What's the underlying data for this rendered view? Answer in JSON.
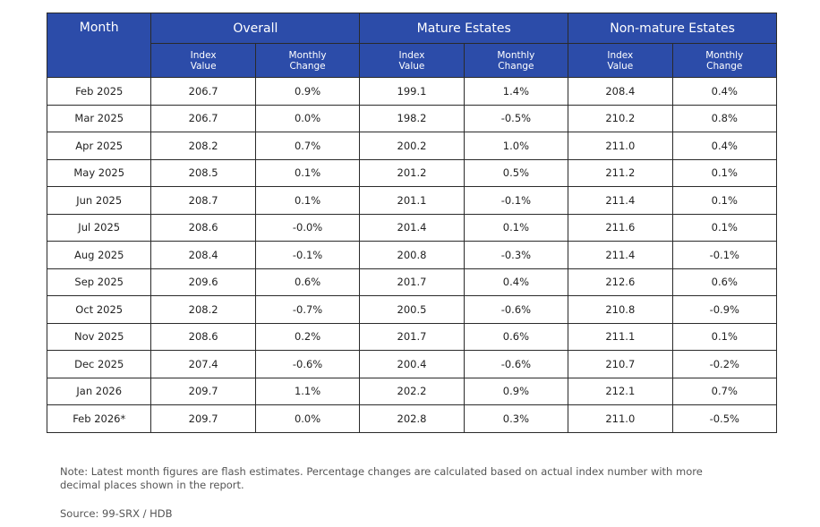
{
  "table": {
    "month_header": "Month",
    "groups": [
      "Overall",
      "Mature Estates",
      "Non-mature Estates"
    ],
    "sub_headers": [
      "Index Value",
      "Monthly Change",
      "Index Value",
      "Monthly Change",
      "Index Value",
      "Monthly Change"
    ],
    "rows": [
      [
        "Feb 2025",
        "206.7",
        "0.9%",
        "199.1",
        "1.4%",
        "208.4",
        "0.4%"
      ],
      [
        "Mar 2025",
        "206.7",
        "0.0%",
        "198.2",
        "-0.5%",
        "210.2",
        "0.8%"
      ],
      [
        "Apr 2025",
        "208.2",
        "0.7%",
        "200.2",
        "1.0%",
        "211.0",
        "0.4%"
      ],
      [
        "May 2025",
        "208.5",
        "0.1%",
        "201.2",
        "0.5%",
        "211.2",
        "0.1%"
      ],
      [
        "Jun 2025",
        "208.7",
        "0.1%",
        "201.1",
        "-0.1%",
        "211.4",
        "0.1%"
      ],
      [
        "Jul 2025",
        "208.6",
        "-0.0%",
        "201.4",
        "0.1%",
        "211.6",
        "0.1%"
      ],
      [
        "Aug 2025",
        "208.4",
        "-0.1%",
        "200.8",
        "-0.3%",
        "211.4",
        "-0.1%"
      ],
      [
        "Sep 2025",
        "209.6",
        "0.6%",
        "201.7",
        "0.4%",
        "212.6",
        "0.6%"
      ],
      [
        "Oct 2025",
        "208.2",
        "-0.7%",
        "200.5",
        "-0.6%",
        "210.8",
        "-0.9%"
      ],
      [
        "Nov 2025",
        "208.6",
        "0.2%",
        "201.7",
        "0.6%",
        "211.1",
        "0.1%"
      ],
      [
        "Dec 2025",
        "207.4",
        "-0.6%",
        "200.4",
        "-0.6%",
        "210.7",
        "-0.2%"
      ],
      [
        "Jan 2026",
        "209.7",
        "1.1%",
        "202.2",
        "0.9%",
        "212.1",
        "0.7%"
      ],
      [
        "Feb 2026*",
        "209.7",
        "0.0%",
        "202.8",
        "0.3%",
        "211.0",
        "-0.5%"
      ]
    ]
  },
  "note": "Note: Latest month figures are flash estimates. Percentage changes are calculated based on actual index number with more decimal places shown in the report.",
  "source": "Source: 99-SRX / HDB"
}
